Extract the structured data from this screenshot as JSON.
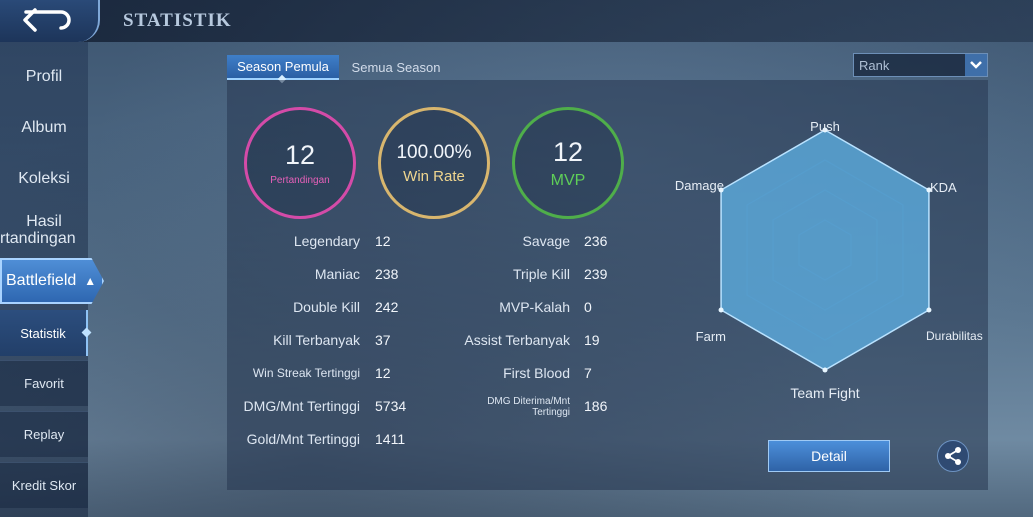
{
  "header": {
    "title": "STATISTIK"
  },
  "sidebar": {
    "items": [
      {
        "label": "Profil"
      },
      {
        "label": "Album"
      },
      {
        "label": "Koleksi"
      },
      {
        "label_line1": "Hasil",
        "label_line2": "rtandingan"
      },
      {
        "label": "Battlefield"
      }
    ],
    "sub_items": [
      {
        "label": "Statistik"
      },
      {
        "label": "Favorit"
      },
      {
        "label": "Replay"
      },
      {
        "label": "Kredit Skor"
      }
    ]
  },
  "tabs": [
    {
      "label": "Season Pemula",
      "active": true
    },
    {
      "label": "Semua Season",
      "active": false
    }
  ],
  "rank_select": {
    "value": "Rank"
  },
  "summary": {
    "matches": {
      "value": "12",
      "label": "Pertandingan",
      "color": "#d44ba8"
    },
    "win_rate": {
      "value": "100.00%",
      "label": "Win Rate",
      "color": "#d8b66e"
    },
    "mvp": {
      "value": "12",
      "label": "MVP",
      "color": "#4fae4a"
    }
  },
  "stats_left": [
    {
      "label": "Legendary",
      "value": "12"
    },
    {
      "label": "Maniac",
      "value": "238"
    },
    {
      "label": "Double Kill",
      "value": "242"
    },
    {
      "label": "Kill Terbanyak",
      "value": "37"
    },
    {
      "label": "Win Streak Tertinggi",
      "value": "12"
    },
    {
      "label": "DMG/Mnt Tertinggi",
      "value": "5734"
    },
    {
      "label": "Gold/Mnt Tertinggi",
      "value": "1411"
    }
  ],
  "stats_right": [
    {
      "label": "Savage",
      "value": "236"
    },
    {
      "label": "Triple Kill",
      "value": "239"
    },
    {
      "label": "MVP-Kalah",
      "value": "0"
    },
    {
      "label": "Assist Terbanyak",
      "value": "19"
    },
    {
      "label": "First Blood",
      "value": "7"
    },
    {
      "label_line1": "DMG Diterima/Mnt",
      "label_line2": "Tertinggi",
      "value": "186"
    }
  ],
  "radar": {
    "axes": [
      "Push",
      "KDA",
      "Durabilitas",
      "Team Fight",
      "Farm",
      "Damage"
    ],
    "values": [
      1,
      1,
      1,
      1,
      1,
      1
    ],
    "fill_color": "#5fb2e6"
  },
  "buttons": {
    "detail_label": "Detail"
  },
  "icons": {
    "back": "back-arrow-icon",
    "share": "share-icon",
    "dropdown": "chevron-down-icon"
  }
}
